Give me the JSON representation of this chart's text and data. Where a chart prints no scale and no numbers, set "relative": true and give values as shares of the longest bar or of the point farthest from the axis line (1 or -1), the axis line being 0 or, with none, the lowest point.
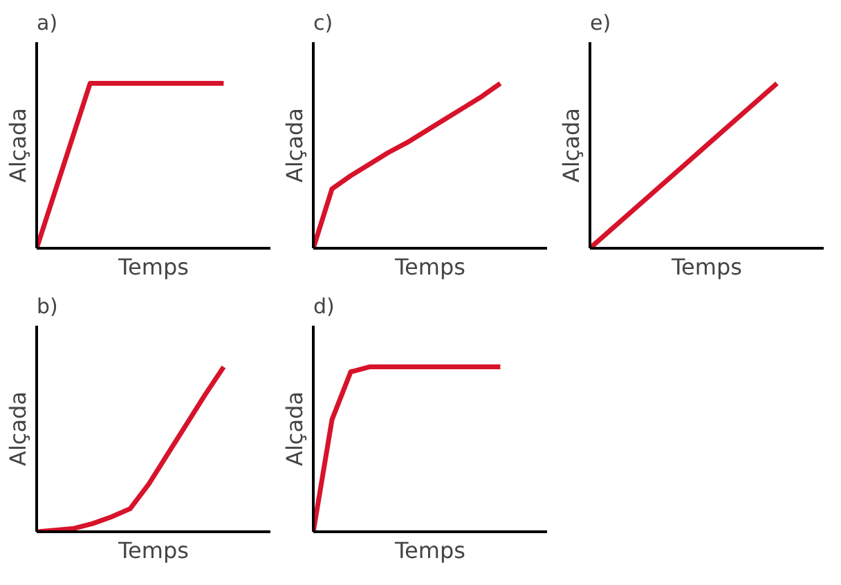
{
  "chart_data": [
    {
      "type": "line",
      "title": "a)",
      "xlabel": "Temps",
      "ylabel": "Alçada",
      "relative": true,
      "categories": [
        null,
        null,
        null,
        null,
        null,
        null,
        null,
        null
      ],
      "series": [
        {
          "color": "#d7132b",
          "values": [
            0,
            0.5,
            1,
            1,
            1,
            1,
            1,
            1
          ]
        }
      ]
    },
    {
      "type": "line",
      "title": "c)",
      "xlabel": "Temps",
      "ylabel": "Alçada",
      "relative": true,
      "categories": [
        null,
        null,
        null,
        null,
        null,
        null,
        null,
        null,
        null,
        null,
        null
      ],
      "series": [
        {
          "color": "#d7132b",
          "values": [
            0,
            0.36,
            0.44,
            0.51,
            0.58,
            0.64,
            0.71,
            0.78,
            0.85,
            0.92,
            1
          ]
        }
      ]
    },
    {
      "type": "line",
      "title": "e)",
      "xlabel": "Temps",
      "ylabel": "Alçada",
      "relative": true,
      "categories": [
        null,
        null,
        null,
        null,
        null
      ],
      "series": [
        {
          "color": "#d7132b",
          "values": [
            0,
            0.25,
            0.5,
            0.75,
            1
          ]
        }
      ]
    },
    {
      "type": "line",
      "title": "b)",
      "xlabel": "Temps",
      "ylabel": "Alçada",
      "relative": true,
      "categories": [
        null,
        null,
        null,
        null,
        null,
        null,
        null,
        null,
        null,
        null,
        null
      ],
      "series": [
        {
          "color": "#d7132b",
          "values": [
            0,
            0.01,
            0.02,
            0.05,
            0.09,
            0.14,
            0.29,
            0.47,
            0.65,
            0.83,
            1
          ]
        }
      ]
    },
    {
      "type": "line",
      "title": "d)",
      "xlabel": "Temps",
      "ylabel": "Alçada",
      "relative": true,
      "categories": [
        null,
        null,
        null,
        null,
        null,
        null,
        null,
        null,
        null,
        null,
        null
      ],
      "series": [
        {
          "color": "#d7132b",
          "values": [
            0,
            0.68,
            0.97,
            1,
            1,
            1,
            1,
            1,
            1,
            1,
            1
          ]
        }
      ]
    }
  ]
}
